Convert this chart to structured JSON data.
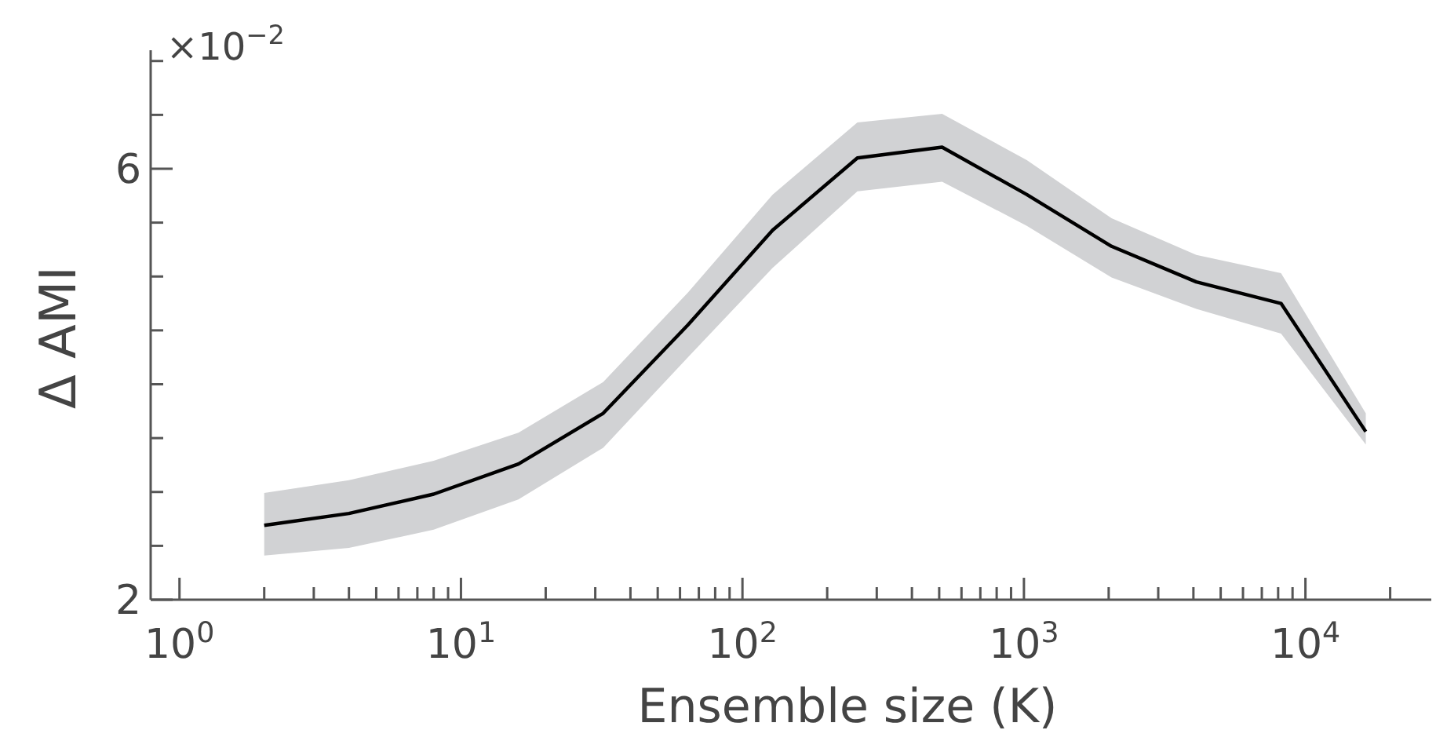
{
  "chart_data": {
    "type": "line",
    "xlabel": "Ensemble size (K)",
    "ylabel": "Δ AMI",
    "annotations": [
      "×10$^{−2}$"
    ],
    "log": "x",
    "xlim": [
      0.79,
      28000
    ],
    "ylim": [
      2,
      7.1
    ],
    "xticks": [
      {
        "value": 1,
        "label": "10$^{0}$"
      },
      {
        "value": 2,
        "label": null
      },
      {
        "value": 3,
        "label": null
      },
      {
        "value": 4,
        "label": null
      },
      {
        "value": 5,
        "label": null
      },
      {
        "value": 6,
        "label": null
      },
      {
        "value": 7,
        "label": null
      },
      {
        "value": 8,
        "label": null
      },
      {
        "value": 9,
        "label": null
      },
      {
        "value": 10,
        "label": "10$^{1}$"
      },
      {
        "value": 20,
        "label": null
      },
      {
        "value": 30,
        "label": null
      },
      {
        "value": 40,
        "label": null
      },
      {
        "value": 50,
        "label": null
      },
      {
        "value": 60,
        "label": null
      },
      {
        "value": 70,
        "label": null
      },
      {
        "value": 80,
        "label": null
      },
      {
        "value": 90,
        "label": null
      },
      {
        "value": 100,
        "label": "10$^{2}$"
      },
      {
        "value": 200,
        "label": null
      },
      {
        "value": 300,
        "label": null
      },
      {
        "value": 400,
        "label": null
      },
      {
        "value": 500,
        "label": null
      },
      {
        "value": 600,
        "label": null
      },
      {
        "value": 700,
        "label": null
      },
      {
        "value": 800,
        "label": null
      },
      {
        "value": 900,
        "label": null
      },
      {
        "value": 1000,
        "label": "10$^{3}$"
      },
      {
        "value": 2000,
        "label": null
      },
      {
        "value": 3000,
        "label": null
      },
      {
        "value": 4000,
        "label": null
      },
      {
        "value": 5000,
        "label": null
      },
      {
        "value": 6000,
        "label": null
      },
      {
        "value": 7000,
        "label": null
      },
      {
        "value": 8000,
        "label": null
      },
      {
        "value": 9000,
        "label": null
      },
      {
        "value": 10000,
        "label": "10$^{4}$"
      },
      {
        "value": 20000,
        "label": null
      }
    ],
    "yticks": [
      2,
      {
        "value": 2.5,
        "label": null
      },
      {
        "value": 3,
        "label": null
      },
      {
        "value": 3.5,
        "label": null
      },
      {
        "value": 4,
        "label": null
      },
      {
        "value": 4.5,
        "label": null
      },
      {
        "value": 5,
        "label": null
      },
      {
        "value": 5.5,
        "label": null
      },
      6,
      {
        "value": 6.5,
        "label": null
      },
      {
        "value": 7,
        "label": null
      }
    ],
    "x": [
      2,
      4,
      8,
      16,
      32,
      64,
      128,
      256,
      512,
      1024,
      2048,
      4096,
      8192,
      16384
    ],
    "series": [
      {
        "color": "#000000",
        "values": [
          2.69,
          2.8,
          2.98,
          3.26,
          3.73,
          4.55,
          5.43,
          6.1,
          6.2,
          5.76,
          5.28,
          4.95,
          4.75,
          3.56
        ],
        "lower": [
          2.41,
          2.48,
          2.65,
          2.93,
          3.41,
          4.25,
          5.08,
          5.79,
          5.88,
          5.47,
          4.99,
          4.7,
          4.47,
          3.44
        ],
        "upper": [
          2.99,
          3.11,
          3.29,
          3.55,
          4.02,
          4.85,
          5.76,
          6.43,
          6.51,
          6.08,
          5.54,
          5.2,
          5.03,
          3.73
        ]
      }
    ]
  }
}
